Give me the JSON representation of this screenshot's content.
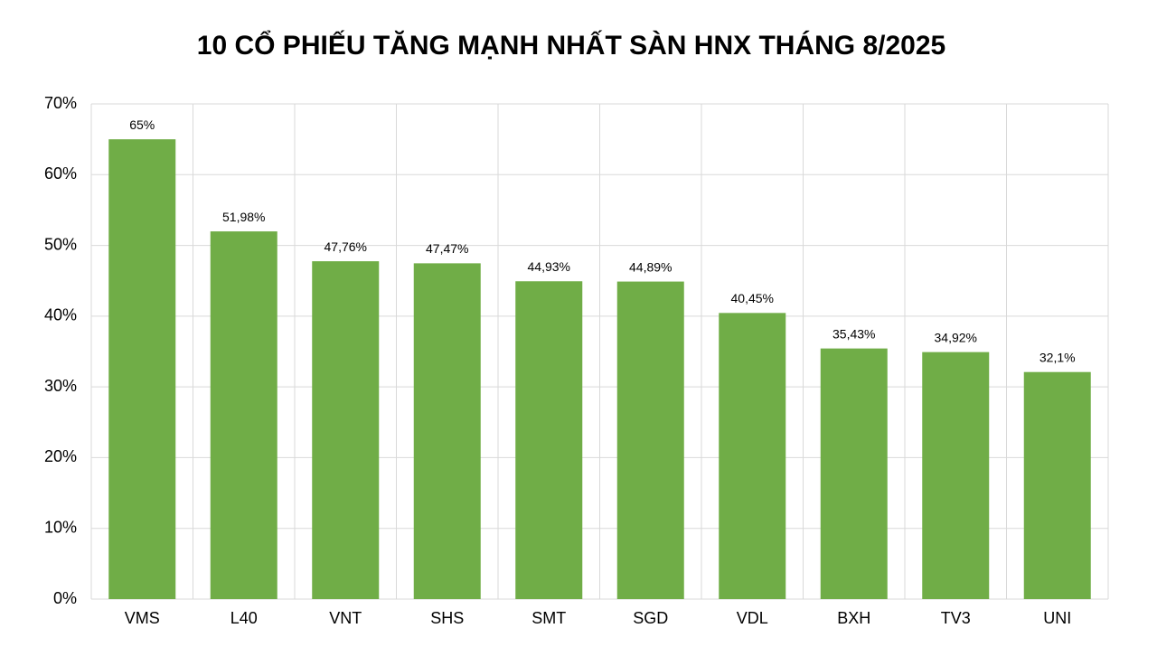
{
  "chart_data": {
    "type": "bar",
    "title": "10 CỔ PHIẾU TĂNG MẠNH NHẤT SÀN HNX THÁNG 8/2025",
    "categories": [
      "VMS",
      "L40",
      "VNT",
      "SHS",
      "SMT",
      "SGD",
      "VDL",
      "BXH",
      "TV3",
      "UNI"
    ],
    "values": [
      65,
      51.98,
      47.76,
      47.47,
      44.93,
      44.89,
      40.45,
      35.43,
      34.92,
      32.1
    ],
    "value_labels": [
      "65%",
      "51,98%",
      "47,76%",
      "47,47%",
      "44,93%",
      "44,89%",
      "40,45%",
      "35,43%",
      "34,92%",
      "32,1%"
    ],
    "color": "#70ad47",
    "ylim": [
      0,
      70
    ],
    "yticks": [
      {
        "value": 0,
        "label": "0%"
      },
      {
        "value": 10,
        "label": "10%"
      },
      {
        "value": 20,
        "label": "20%"
      },
      {
        "value": 30,
        "label": "30%"
      },
      {
        "value": 40,
        "label": "40%"
      },
      {
        "value": 50,
        "label": "50%"
      },
      {
        "value": 60,
        "label": "60%"
      },
      {
        "value": 70,
        "label": "70%"
      }
    ],
    "grid": true
  }
}
